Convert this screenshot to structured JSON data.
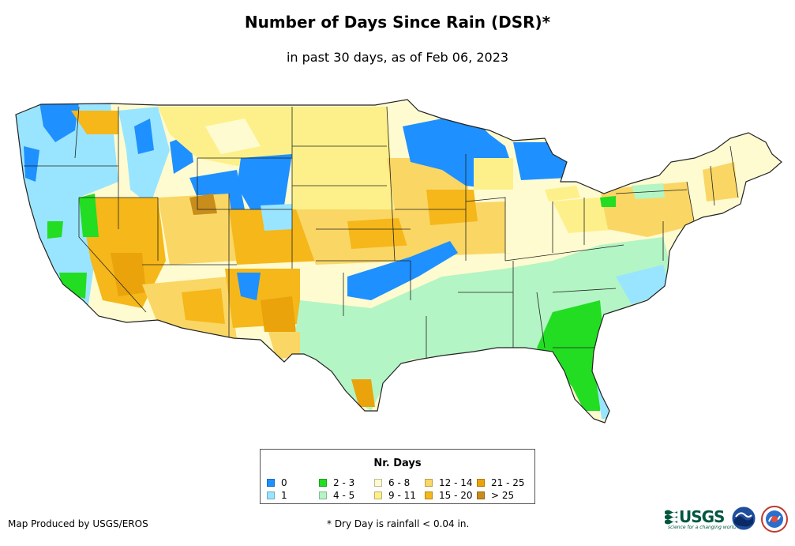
{
  "title": "Number of Days Since Rain (DSR)*",
  "subtitle": "in past 30 days, as of Feb 06, 2023",
  "legend": {
    "title": "Nr. Days",
    "items": [
      {
        "label": "0",
        "color": "#1e90ff"
      },
      {
        "label": "1",
        "color": "#99e5ff"
      },
      {
        "label": "2 - 3",
        "color": "#22dd22"
      },
      {
        "label": "4 - 5",
        "color": "#b3f5c4"
      },
      {
        "label": "6 - 8",
        "color": "#fffbd0"
      },
      {
        "label": "9 - 11",
        "color": "#fdf08a"
      },
      {
        "label": "12 - 14",
        "color": "#fad665"
      },
      {
        "label": "15 - 20",
        "color": "#f5b71a"
      },
      {
        "label": "21 - 25",
        "color": "#eaa30a"
      },
      {
        "label": "> 25",
        "color": "#c88d1b"
      }
    ]
  },
  "credit": "Map Produced by USGS/EROS",
  "footnote": "* Dry Day is rainfall < 0.04 in.",
  "logos": {
    "usgs_text": "USGS",
    "usgs_tagline": "science for a changing world",
    "noaa_icon": "noaa-icon",
    "nws_icon": "nws-icon"
  }
}
